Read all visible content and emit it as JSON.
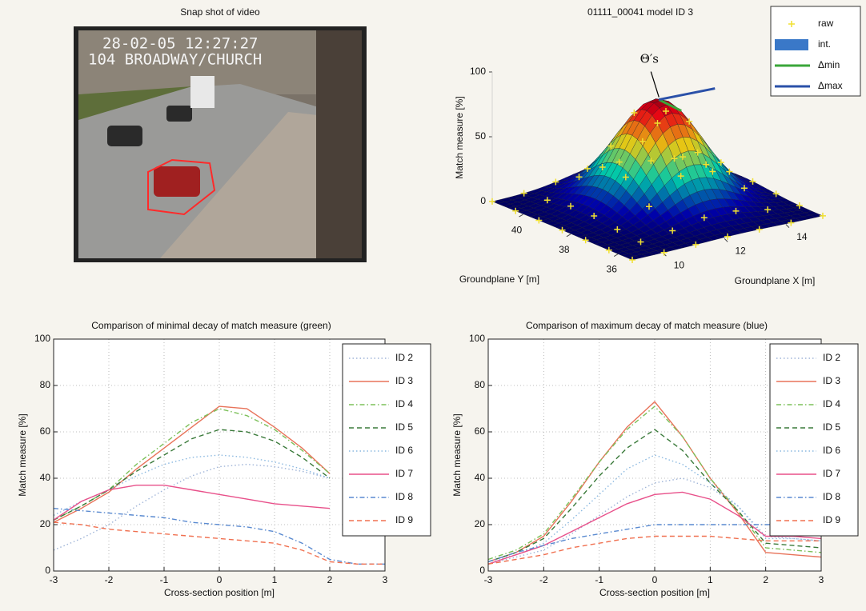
{
  "snapshot": {
    "title": "Snap shot of video",
    "overlay": [
      "28-02-05 12:27:27",
      "104 BROADWAY/CHURCH"
    ]
  },
  "chart_data": [
    {
      "type": "surface3d",
      "title": "01111_00041    model ID 3",
      "xlabel": "Groundplane X [m]",
      "ylabel": "Groundplane Y [m]",
      "zlabel": "Match measure [%]",
      "xlim": [
        9,
        15.2
      ],
      "ylim": [
        35.4,
        41.3
      ],
      "zlim": [
        0,
        100
      ],
      "xticks": [
        10,
        12,
        14
      ],
      "yticks": [
        36,
        38,
        40
      ],
      "zticks": [
        0,
        50,
        100
      ],
      "annotation": "Θ′s",
      "legend": [
        {
          "name": "raw",
          "color": "#f0e030"
        },
        {
          "name": "int.",
          "color": "#3a78c8"
        },
        {
          "name": "Δmin",
          "color": "#3aa63a"
        },
        {
          "name": "Δmax",
          "color": "#2a50a8"
        }
      ]
    },
    {
      "type": "line",
      "title": "Comparison of minimal decay of match measure (green)",
      "xlabel": "Cross-section position [m]",
      "ylabel": "Match measure [%]",
      "xlim": [
        -3,
        3
      ],
      "ylim": [
        0,
        100
      ],
      "xticks": [
        -3,
        -2,
        -1,
        0,
        1,
        2,
        3
      ],
      "yticks": [
        0,
        20,
        40,
        60,
        80,
        100
      ],
      "grid": true,
      "x": [
        -3,
        -2.5,
        -2,
        -1.5,
        -1,
        -0.5,
        0,
        0.5,
        1,
        1.5,
        2,
        2.5,
        3
      ],
      "series": [
        {
          "name": "ID 2",
          "color": "#9fb4d8",
          "dash": "dotted",
          "values": [
            9,
            14,
            20,
            28,
            35,
            41,
            45,
            46,
            45,
            43,
            40,
            null,
            null
          ]
        },
        {
          "name": "ID 3",
          "color": "#e8735a",
          "dash": "solid",
          "values": [
            21,
            27,
            34,
            44,
            53,
            62,
            71,
            70,
            62,
            53,
            42,
            null,
            null
          ]
        },
        {
          "name": "ID 4",
          "color": "#7cc05a",
          "dash": "dashdot",
          "values": [
            22,
            28,
            35,
            46,
            55,
            64,
            70,
            67,
            61,
            52,
            42,
            null,
            null
          ]
        },
        {
          "name": "ID 5",
          "color": "#3a7a3a",
          "dash": "dashed",
          "values": [
            22,
            28,
            35,
            43,
            50,
            57,
            61,
            60,
            56,
            49,
            40,
            null,
            null
          ]
        },
        {
          "name": "ID 6",
          "color": "#8ab8e0",
          "dash": "dotted",
          "values": [
            24,
            30,
            35,
            41,
            46,
            49,
            50,
            49,
            47,
            44,
            40,
            null,
            null
          ]
        },
        {
          "name": "ID 7",
          "color": "#e8508a",
          "dash": "solid",
          "values": [
            22,
            30,
            35,
            37,
            37,
            35,
            33,
            31,
            29,
            28,
            27,
            null,
            null
          ]
        },
        {
          "name": "ID 8",
          "color": "#5a8ad0",
          "dash": "dashdot",
          "values": [
            27,
            26,
            25,
            24,
            23,
            21,
            20,
            19,
            17,
            12,
            5,
            3,
            3
          ]
        },
        {
          "name": "ID 9",
          "color": "#f07050",
          "dash": "dashed",
          "values": [
            21,
            20,
            18,
            17,
            16,
            15,
            14,
            13,
            12,
            9,
            4,
            3,
            3
          ]
        }
      ]
    },
    {
      "type": "line",
      "title": "Comparison of maximum decay of match measure (blue)",
      "xlabel": "Cross-section position [m]",
      "ylabel": "Match measure [%]",
      "xlim": [
        -3,
        3
      ],
      "ylim": [
        0,
        100
      ],
      "xticks": [
        -3,
        -2,
        -1,
        0,
        1,
        2,
        3
      ],
      "yticks": [
        0,
        20,
        40,
        60,
        80,
        100
      ],
      "grid": true,
      "x": [
        -3,
        -2.5,
        -2,
        -1.5,
        -1,
        -0.5,
        0,
        0.5,
        1,
        1.5,
        2,
        2.5,
        3
      ],
      "series": [
        {
          "name": "ID 2",
          "color": "#9fb4d8",
          "dash": "dotted",
          "values": [
            3,
            6,
            9,
            16,
            24,
            32,
            38,
            40,
            36,
            28,
            15,
            14,
            13
          ]
        },
        {
          "name": "ID 3",
          "color": "#e8735a",
          "dash": "solid",
          "values": [
            4,
            8,
            15,
            30,
            47,
            62,
            73,
            58,
            40,
            25,
            8,
            7,
            6
          ]
        },
        {
          "name": "ID 4",
          "color": "#7cc05a",
          "dash": "dashdot",
          "values": [
            5,
            9,
            16,
            31,
            47,
            61,
            71,
            58,
            40,
            26,
            10,
            9,
            8
          ]
        },
        {
          "name": "ID 5",
          "color": "#3a7a3a",
          "dash": "dashed",
          "values": [
            4,
            8,
            14,
            27,
            41,
            53,
            61,
            52,
            38,
            26,
            12,
            11,
            10
          ]
        },
        {
          "name": "ID 6",
          "color": "#8ab8e0",
          "dash": "dotted",
          "values": [
            4,
            7,
            12,
            22,
            33,
            44,
            50,
            46,
            38,
            28,
            14,
            14,
            13
          ]
        },
        {
          "name": "ID 7",
          "color": "#e8508a",
          "dash": "solid",
          "values": [
            3,
            7,
            11,
            17,
            23,
            29,
            33,
            34,
            31,
            24,
            15,
            15,
            14
          ]
        },
        {
          "name": "ID 8",
          "color": "#5a8ad0",
          "dash": "dashdot",
          "values": [
            4,
            8,
            11,
            14,
            16,
            18,
            20,
            20,
            20,
            20,
            20,
            20,
            20
          ]
        },
        {
          "name": "ID 9",
          "color": "#f07050",
          "dash": "dashed",
          "values": [
            3,
            5,
            7,
            10,
            12,
            14,
            15,
            15,
            15,
            14,
            13,
            13,
            13
          ]
        }
      ]
    }
  ]
}
